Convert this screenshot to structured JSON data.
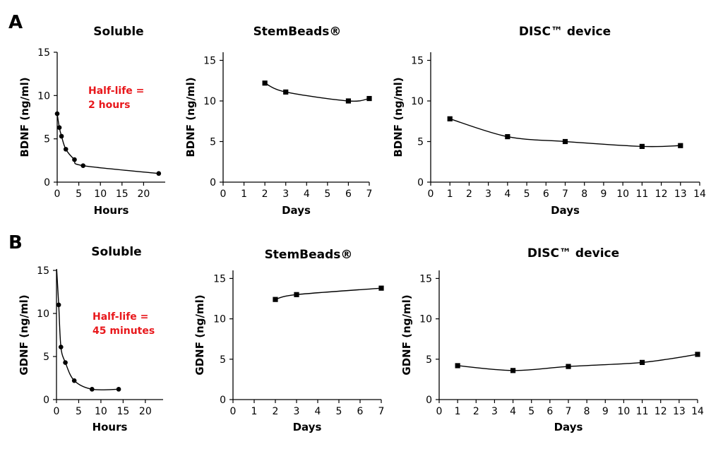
{
  "panels": [
    {
      "label": "A"
    },
    {
      "label": "B"
    }
  ],
  "colors": {
    "axis": "#000000",
    "series": "#000000",
    "annotation": "#e8181c"
  },
  "chart_data": [
    {
      "type": "line",
      "panel": "A",
      "title": "Soluble",
      "xlabel": "Hours",
      "ylabel": "BDNF (ng/ml)",
      "xlim": [
        0,
        25
      ],
      "ylim": [
        0,
        15
      ],
      "xticks": [
        0,
        5,
        10,
        15,
        20
      ],
      "yticks": [
        0,
        5,
        10,
        15
      ],
      "marker": "circle",
      "annotation": [
        "Half-life =",
        "2 hours"
      ],
      "series": [
        {
          "x": [
            0,
            0.5,
            1,
            2,
            4,
            6,
            23.5
          ],
          "y": [
            7.9,
            6.3,
            5.3,
            3.8,
            2.6,
            1.9,
            1.0
          ]
        }
      ]
    },
    {
      "type": "line",
      "panel": "A",
      "title": "StemBeads®",
      "xlabel": "Days",
      "ylabel": "BDNF (ng/ml)",
      "xlim": [
        0,
        7
      ],
      "ylim": [
        0,
        16
      ],
      "xticks": [
        0,
        1,
        2,
        3,
        4,
        5,
        6,
        7
      ],
      "yticks": [
        0,
        5,
        10,
        15
      ],
      "marker": "square",
      "series": [
        {
          "x": [
            2,
            3,
            6,
            7
          ],
          "y": [
            12.2,
            11.1,
            10.0,
            10.3
          ]
        }
      ]
    },
    {
      "type": "line",
      "panel": "A",
      "title": "DISC™ device",
      "xlabel": "Days",
      "ylabel": "BDNF (ng/ml)",
      "xlim": [
        0,
        14
      ],
      "ylim": [
        0,
        16
      ],
      "xticks": [
        0,
        1,
        2,
        3,
        4,
        5,
        6,
        7,
        8,
        9,
        10,
        11,
        12,
        13,
        14
      ],
      "yticks": [
        0,
        5,
        10,
        15
      ],
      "marker": "square",
      "series": [
        {
          "x": [
            1,
            4,
            7,
            11,
            13
          ],
          "y": [
            7.8,
            5.6,
            5.0,
            4.4,
            4.5
          ]
        }
      ]
    },
    {
      "type": "line",
      "panel": "B",
      "title": "Soluble",
      "xlabel": "Hours",
      "ylabel": "GDNF (ng/ml)",
      "xlim": [
        0,
        24
      ],
      "ylim": [
        0,
        15
      ],
      "xticks": [
        0,
        5,
        10,
        15,
        20
      ],
      "yticks": [
        0,
        5,
        10,
        15
      ],
      "marker": "circle",
      "annotation": [
        "Half-life =",
        "45 minutes"
      ],
      "series": [
        {
          "x": [
            0,
            0.5,
            1,
            2,
            4,
            8,
            14
          ],
          "y": [
            15.5,
            11.0,
            6.1,
            4.3,
            2.2,
            1.2,
            1.2
          ]
        }
      ]
    },
    {
      "type": "line",
      "panel": "B",
      "title": "StemBeads®",
      "xlabel": "Days",
      "ylabel": "GDNF (ng/ml)",
      "xlim": [
        0,
        7
      ],
      "ylim": [
        0,
        16
      ],
      "xticks": [
        0,
        1,
        2,
        3,
        4,
        5,
        6,
        7
      ],
      "yticks": [
        0,
        5,
        10,
        15
      ],
      "marker": "square",
      "series": [
        {
          "x": [
            2,
            3,
            7
          ],
          "y": [
            12.4,
            13.0,
            13.8
          ]
        }
      ]
    },
    {
      "type": "line",
      "panel": "B",
      "title": "DISC™ device",
      "xlabel": "Days",
      "ylabel": "GDNF (ng/ml)",
      "xlim": [
        0,
        14
      ],
      "ylim": [
        0,
        16
      ],
      "xticks": [
        0,
        1,
        2,
        3,
        4,
        5,
        6,
        7,
        8,
        9,
        10,
        11,
        12,
        13,
        14
      ],
      "yticks": [
        0,
        5,
        10,
        15
      ],
      "marker": "square",
      "series": [
        {
          "x": [
            1,
            4,
            7,
            11,
            14
          ],
          "y": [
            4.2,
            3.6,
            4.1,
            4.6,
            5.6
          ]
        }
      ]
    }
  ]
}
